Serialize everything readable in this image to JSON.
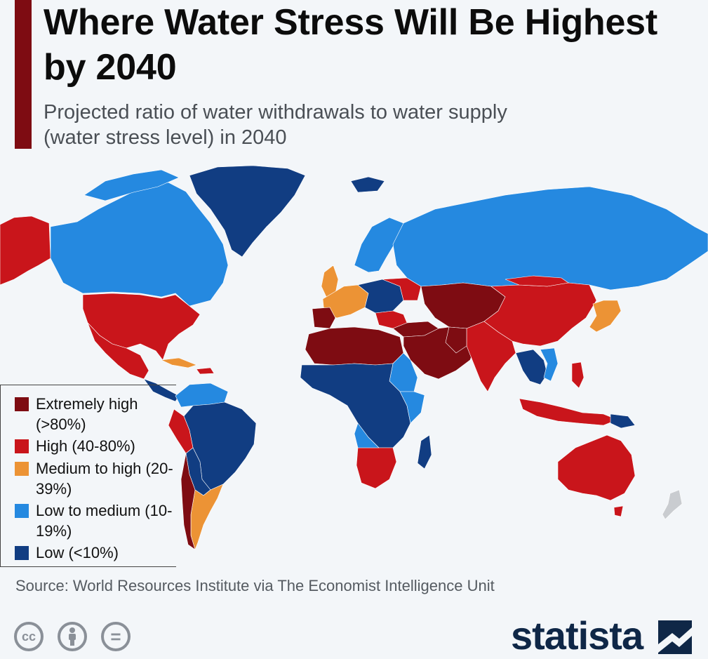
{
  "header": {
    "title": "Where Water Stress Will Be Highest by 2040",
    "subtitle": "Projected ratio of water withdrawals to water supply (water stress level) in 2040"
  },
  "colors": {
    "extremely_high": "#7e0c12",
    "high": "#c9151b",
    "medium_high": "#ec9335",
    "low_medium": "#2589e0",
    "low": "#113d82",
    "no_data": "#c9ccd0",
    "background": "#f3f6f9",
    "accent": "#7e0c12"
  },
  "legend": {
    "items": [
      {
        "key": "extremely_high",
        "label": "Extremely high (>80%)"
      },
      {
        "key": "high",
        "label": "High (40-80%)"
      },
      {
        "key": "medium_high",
        "label": "Medium to high (20-39%)"
      },
      {
        "key": "low_medium",
        "label": "Low to medium (10-19%)"
      },
      {
        "key": "low",
        "label": "Low (<10%)"
      }
    ]
  },
  "source": "Source: World Resources Institute via The Economist Intelligence Unit",
  "footer": {
    "brand": "statista",
    "license_icons": [
      "cc-icon",
      "attribution-icon",
      "no-derivatives-icon"
    ],
    "cc_text": "cc",
    "nd_text": "="
  }
}
